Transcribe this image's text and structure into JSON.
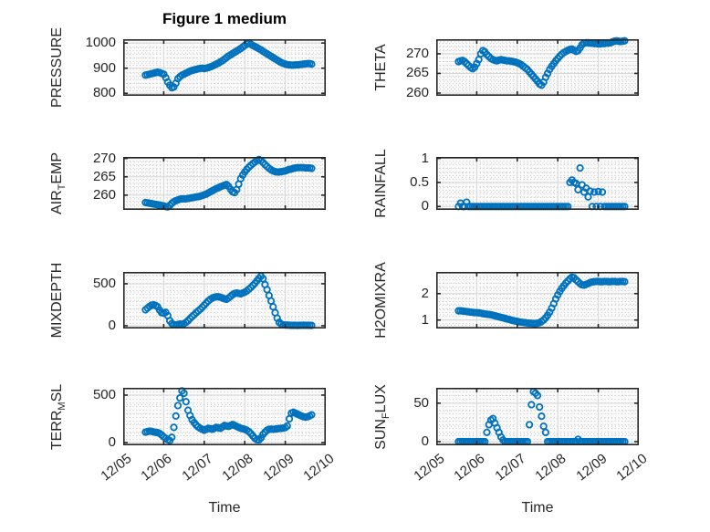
{
  "figure": {
    "title": "Figure 1 medium",
    "x_axis_label": "Time"
  },
  "style": {
    "marker_color": "#0072BD",
    "axis_color": "#262626",
    "text_color": "#262626",
    "major_grid_color": "#d6d6d6",
    "minor_grid_color": "#c9c9c9",
    "plot_background": "#fafafa"
  },
  "chart_data": {
    "type": "scatter",
    "title": "Figure 1 medium",
    "xlabel": "Time",
    "layout": "4x2-subplot-grid",
    "marker": "open-circle",
    "grid": "major-solid-minor-dotted",
    "x_axis": {
      "lim": [
        0,
        5
      ],
      "tick_labels": [
        "12/05",
        "12/06",
        "12/07",
        "12/08",
        "12/09",
        "12/10"
      ],
      "minor_divisions_per_day": 12,
      "x_start": 0.55,
      "x_step": 0.05,
      "units": "days since 12/05 00:00"
    },
    "subplots": [
      {
        "name": "PRESSURE",
        "row": 0,
        "col": 0,
        "ylabel_parts": [
          [
            "n",
            "PRESSURE"
          ]
        ],
        "ylim": [
          790,
          1015
        ],
        "yticks": [
          800,
          900,
          1000
        ],
        "yminor": 20,
        "values": [
          872,
          874,
          876,
          878,
          880,
          882,
          884,
          882,
          879,
          876,
          862,
          845,
          832,
          822,
          825,
          840,
          858,
          866,
          872,
          876,
          880,
          884,
          888,
          891,
          893,
          895,
          897,
          899,
          900,
          898,
          900,
          902,
          905,
          908,
          912,
          916,
          920,
          925,
          930,
          936,
          942,
          948,
          953,
          958,
          963,
          968,
          973,
          978,
          984,
          990,
          997,
          1000,
          995,
          990,
          986,
          982,
          977,
          973,
          967,
          962,
          957,
          952,
          947,
          942,
          937,
          932,
          927,
          922,
          919,
          916,
          914,
          913,
          912,
          912,
          913,
          913,
          914,
          915,
          916,
          917,
          918,
          918,
          916
        ]
      },
      {
        "name": "THETA",
        "row": 0,
        "col": 1,
        "ylabel_parts": [
          [
            "n",
            "THETA"
          ]
        ],
        "ylim": [
          259.3,
          273.7
        ],
        "yticks": [
          260,
          265,
          270
        ],
        "yminor": 1,
        "values": [
          268,
          268.2,
          268.3,
          268,
          267.5,
          267,
          266.5,
          266.2,
          266.6,
          267.5,
          268.5,
          270,
          270.8,
          270.5,
          269.8,
          269.3,
          268.8,
          268.5,
          268.3,
          268.2,
          268.4,
          268.5,
          268.4,
          268.3,
          268.2,
          268.2,
          268.1,
          268,
          267.9,
          267.7,
          267.5,
          267.2,
          266.8,
          266.4,
          266,
          265.4,
          264.8,
          264.2,
          263.6,
          263,
          262.3,
          262,
          262.8,
          264,
          265,
          266,
          266.8,
          267.5,
          268.2,
          268.8,
          269.4,
          269.9,
          270.3,
          270.6,
          270.9,
          271.1,
          271.2,
          270.9,
          270.6,
          270.8,
          271.5,
          272.3,
          272.7,
          272.8,
          272.8,
          272.7,
          272.7,
          272.6,
          272.6,
          272.5,
          272.5,
          272.6,
          272.6,
          272.7,
          272.7,
          272.8,
          273,
          273.2,
          273.3,
          273.2,
          273.1,
          273.2,
          273.3
        ]
      },
      {
        "name": "AIR_TEMP",
        "row": 1,
        "col": 0,
        "ylabel_parts": [
          [
            "n",
            "AIR"
          ],
          [
            "s",
            "T"
          ],
          [
            "n",
            "EMP"
          ]
        ],
        "ylim": [
          256,
          270.4
        ],
        "yticks": [
          260,
          265,
          270
        ],
        "yminor": 1,
        "values": [
          258,
          257.9,
          257.8,
          257.7,
          257.6,
          257.5,
          257.4,
          257.3,
          257.2,
          257.1,
          256.9,
          256.8,
          257.2,
          257.8,
          258.2,
          258.5,
          258.7,
          258.9,
          259,
          259,
          259,
          259.1,
          259.2,
          259.3,
          259.4,
          259.5,
          259.6,
          259.7,
          259.9,
          260.1,
          260.3,
          260.6,
          260.9,
          261.2,
          261.5,
          261.8,
          262,
          262.3,
          262.5,
          262.7,
          262.9,
          262.4,
          261.6,
          260.9,
          260.7,
          261.5,
          263,
          264.5,
          265.5,
          266.3,
          267,
          267.6,
          268.1,
          268.6,
          269,
          269.4,
          269.7,
          269.4,
          268.9,
          268.3,
          267.8,
          267.3,
          266.9,
          266.6,
          266.4,
          266.3,
          266.3,
          266.4,
          266.5,
          266.6,
          266.8,
          267,
          267.1,
          267.3,
          267.4,
          267.5,
          267.5,
          267.5,
          267.5,
          267.4,
          267.4,
          267.4,
          267.3
        ]
      },
      {
        "name": "RAINFALL",
        "row": 1,
        "col": 1,
        "ylabel_parts": [
          [
            "n",
            "RAINFALL"
          ]
        ],
        "ylim": [
          -0.07,
          1.03
        ],
        "yticks": [
          0,
          0.5,
          1
        ],
        "yminor": 0.1,
        "values": [
          0,
          0.07,
          0,
          0,
          0.09,
          0,
          0,
          0,
          0,
          0,
          0,
          0,
          0,
          0,
          0,
          0,
          0,
          0,
          0,
          0,
          0,
          0,
          0,
          0,
          0,
          0,
          0,
          0,
          0,
          0,
          0,
          0,
          0,
          0,
          0,
          0,
          0,
          0,
          0,
          0,
          0,
          0,
          0,
          0,
          0,
          0,
          0,
          0,
          0,
          0,
          0,
          0,
          0,
          0,
          0,
          0.5,
          0.55,
          0.5,
          0.48,
          0.35,
          0.8,
          0.45,
          0.3,
          0.38,
          0.2,
          0.32,
          0,
          0.3,
          0,
          0.31,
          0,
          0.3,
          0,
          0,
          0,
          0,
          0,
          0,
          0,
          0,
          0,
          0,
          0
        ]
      },
      {
        "name": "MIXDEPTH",
        "row": 2,
        "col": 0,
        "ylabel_parts": [
          [
            "n",
            "MIXDEPTH"
          ]
        ],
        "ylim": [
          -33,
          641
        ],
        "yticks": [
          0,
          500
        ],
        "yminor": 100,
        "values": [
          190,
          210,
          230,
          245,
          250,
          240,
          225,
          185,
          155,
          150,
          160,
          120,
          60,
          25,
          15,
          10,
          15,
          20,
          15,
          25,
          40,
          60,
          85,
          110,
          130,
          155,
          175,
          195,
          220,
          245,
          270,
          295,
          315,
          330,
          340,
          345,
          345,
          340,
          330,
          320,
          315,
          330,
          350,
          370,
          385,
          390,
          385,
          380,
          390,
          400,
          415,
          435,
          455,
          480,
          505,
          535,
          565,
          590,
          560,
          490,
          430,
          360,
          295,
          225,
          155,
          90,
          40,
          20,
          10,
          8,
          8,
          6,
          5,
          5,
          5,
          4,
          5,
          5,
          6,
          5,
          5,
          5,
          4
        ]
      },
      {
        "name": "H2OMIXRA",
        "row": 2,
        "col": 1,
        "ylabel_parts": [
          [
            "n",
            "H2OMIXRA"
          ]
        ],
        "ylim": [
          0.68,
          2.82
        ],
        "yticks": [
          1,
          2
        ],
        "yminor": 0.2,
        "values": [
          1.35,
          1.35,
          1.34,
          1.33,
          1.32,
          1.31,
          1.3,
          1.29,
          1.28,
          1.28,
          1.27,
          1.26,
          1.24,
          1.23,
          1.22,
          1.21,
          1.2,
          1.18,
          1.16,
          1.14,
          1.12,
          1.1,
          1.08,
          1.06,
          1.04,
          1.02,
          1,
          0.98,
          0.96,
          0.95,
          0.93,
          0.92,
          0.91,
          0.9,
          0.89,
          0.88,
          0.88,
          0.87,
          0.87,
          0.88,
          0.9,
          0.95,
          1,
          1.08,
          1.18,
          1.3,
          1.45,
          1.62,
          1.8,
          1.95,
          2.08,
          2.2,
          2.3,
          2.4,
          2.48,
          2.56,
          2.62,
          2.6,
          2.52,
          2.45,
          2.38,
          2.33,
          2.32,
          2.35,
          2.38,
          2.42,
          2.44,
          2.45,
          2.46,
          2.46,
          2.45,
          2.45,
          2.46,
          2.46,
          2.45,
          2.45,
          2.46,
          2.46,
          2.45,
          2.45,
          2.46,
          2.46,
          2.45
        ]
      },
      {
        "name": "TERR_MSL",
        "row": 3,
        "col": 0,
        "ylabel_parts": [
          [
            "n",
            "TERR"
          ],
          [
            "s",
            "M"
          ],
          [
            "n",
            "SL"
          ]
        ],
        "ylim": [
          -29,
          577
        ],
        "yticks": [
          0,
          500
        ],
        "yminor": 100,
        "values": [
          110,
          115,
          120,
          118,
          112,
          108,
          105,
          95,
          80,
          60,
          45,
          30,
          20,
          55,
          160,
          280,
          390,
          470,
          545,
          520,
          430,
          340,
          285,
          240,
          210,
          185,
          165,
          150,
          140,
          130,
          140,
          150,
          145,
          140,
          150,
          160,
          155,
          150,
          165,
          180,
          175,
          170,
          180,
          190,
          180,
          170,
          160,
          150,
          145,
          140,
          130,
          115,
          95,
          70,
          45,
          30,
          28,
          50,
          85,
          110,
          130,
          140,
          142,
          140,
          142,
          145,
          148,
          150,
          152,
          158,
          175,
          250,
          310,
          320,
          310,
          300,
          290,
          280,
          272,
          268,
          272,
          280,
          292
        ]
      },
      {
        "name": "SUN_FLUX",
        "row": 3,
        "col": 1,
        "ylabel_parts": [
          [
            "n",
            "SUN"
          ],
          [
            "s",
            "F"
          ],
          [
            "n",
            "LUX"
          ]
        ],
        "ylim": [
          -4.8,
          70
        ],
        "yticks": [
          0,
          50
        ],
        "yminor": 10,
        "values": [
          0,
          0,
          0,
          0,
          0,
          0,
          0,
          0,
          0,
          0,
          0,
          0,
          0,
          0,
          12,
          22,
          28,
          30,
          24,
          18,
          12,
          6,
          2,
          0,
          0,
          0,
          0,
          0,
          0,
          0,
          0,
          0,
          0,
          0,
          0,
          22,
          48,
          65,
          63,
          60,
          45,
          33,
          20,
          12,
          0,
          0,
          0,
          0,
          0,
          0,
          0,
          0,
          0,
          0,
          0,
          0,
          0,
          0,
          0,
          3,
          0,
          0,
          0,
          0,
          0,
          0,
          0,
          0,
          0,
          0,
          0,
          0,
          0,
          0,
          0,
          0,
          0,
          0,
          0,
          0,
          0,
          0,
          0
        ]
      }
    ]
  }
}
